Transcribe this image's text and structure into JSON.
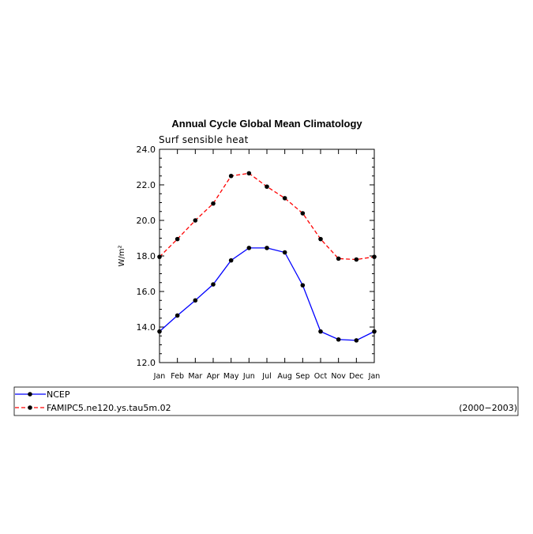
{
  "chart_data": {
    "type": "line",
    "title": "Annual Cycle Global Mean Climatology",
    "subtitle": "Surf sensible heat",
    "ylabel": "W/m²",
    "xlabel": "",
    "ylim": [
      12.0,
      24.0
    ],
    "yticks": [
      "12.0",
      "14.0",
      "16.0",
      "18.0",
      "20.0",
      "22.0",
      "24.0"
    ],
    "categories": [
      "Jan",
      "Feb",
      "Mar",
      "Apr",
      "May",
      "Jun",
      "Jul",
      "Aug",
      "Sep",
      "Oct",
      "Nov",
      "Dec",
      "Jan"
    ],
    "series": [
      {
        "name": "NCEP",
        "color": "#0000ff",
        "dash": "solid",
        "values": [
          13.75,
          14.65,
          15.5,
          16.4,
          17.75,
          18.45,
          18.45,
          18.2,
          16.35,
          13.75,
          13.3,
          13.25,
          13.75
        ]
      },
      {
        "name": "FAMIPC5.ne120.ys.tau5m.02",
        "color": "#ff0000",
        "dash": "dashed",
        "values": [
          17.95,
          18.95,
          20.0,
          20.95,
          22.5,
          22.65,
          21.9,
          21.25,
          20.4,
          18.95,
          17.85,
          17.8,
          17.95
        ]
      }
    ],
    "period": "(2000−2003)",
    "legend_position": "bottom"
  }
}
